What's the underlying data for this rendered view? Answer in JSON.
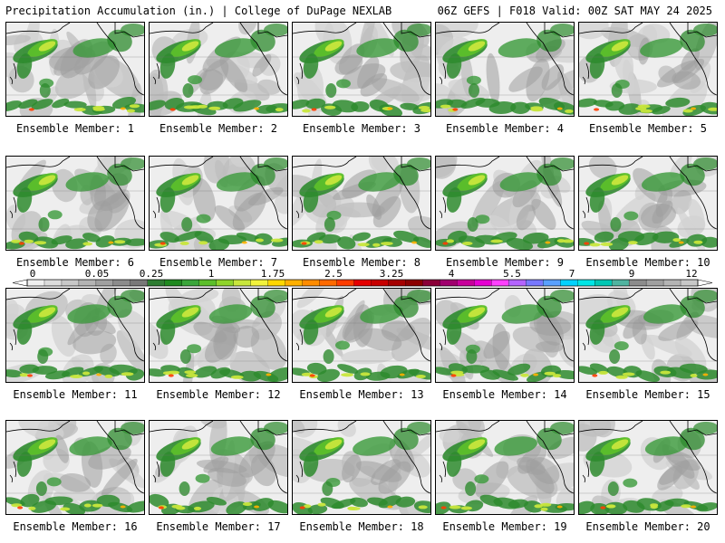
{
  "header": {
    "title_left": "Precipitation Accumulation (in.) | College of DuPage NEXLAB",
    "title_right": "06Z GEFS | F018 Valid: 00Z SAT MAY 24 2025"
  },
  "panels": [
    {
      "label": "Ensemble Member: 1"
    },
    {
      "label": "Ensemble Member: 2"
    },
    {
      "label": "Ensemble Member: 3"
    },
    {
      "label": "Ensemble Member: 4"
    },
    {
      "label": "Ensemble Member: 5"
    },
    {
      "label": "Ensemble Member: 6"
    },
    {
      "label": "Ensemble Member: 7"
    },
    {
      "label": "Ensemble Member: 8"
    },
    {
      "label": "Ensemble Member: 9"
    },
    {
      "label": "Ensemble Member: 10"
    },
    {
      "label": "Ensemble Member: 11"
    },
    {
      "label": "Ensemble Member: 12"
    },
    {
      "label": "Ensemble Member: 13"
    },
    {
      "label": "Ensemble Member: 14"
    },
    {
      "label": "Ensemble Member: 15"
    },
    {
      "label": "Ensemble Member: 16"
    },
    {
      "label": "Ensemble Member: 17"
    },
    {
      "label": "Ensemble Member: 18"
    },
    {
      "label": "Ensemble Member: 19"
    },
    {
      "label": "Ensemble Member: 20"
    }
  ],
  "colorbar": {
    "labels": [
      "0",
      "0.05",
      "0.25",
      "1",
      "1.75",
      "2.5",
      "3.25",
      "4",
      "5.5",
      "7",
      "9",
      "12"
    ],
    "colors": [
      "#f0f0f0",
      "#dcdcdc",
      "#c8c8c8",
      "#b4b4b4",
      "#a0a0a0",
      "#8c8c8c",
      "#787878",
      "#2e7d32",
      "#1f8a1f",
      "#3aa63a",
      "#5cbf2a",
      "#8fd42a",
      "#c8e63c",
      "#f2f23c",
      "#ffd700",
      "#ffb000",
      "#ff8c00",
      "#ff6a00",
      "#ff3c00",
      "#e60000",
      "#c80000",
      "#a50000",
      "#8b0000",
      "#8b0038",
      "#a0006e",
      "#c8009b",
      "#e600d2",
      "#ff40ff",
      "#b464ff",
      "#7878ff",
      "#5aa0ff",
      "#00d2ff",
      "#00e6e6",
      "#00c8b4",
      "#50b4a0",
      "#8c8c8c",
      "#a0a0a0",
      "#b4b4b4",
      "#c8c8c8"
    ]
  }
}
